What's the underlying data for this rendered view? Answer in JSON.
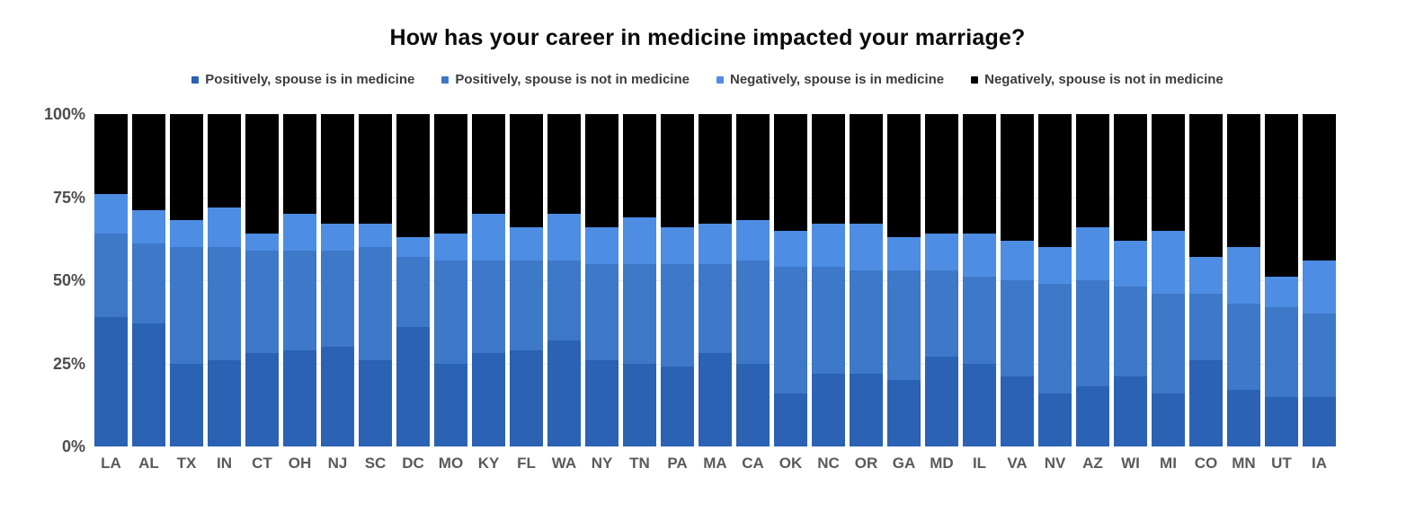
{
  "chart_data": {
    "type": "bar",
    "stacked": true,
    "percent": true,
    "title": "How has your career in medicine impacted your marriage?",
    "xlabel": "",
    "ylabel": "",
    "ylim": [
      0,
      100
    ],
    "ytick_labels": [
      "0%",
      "25%",
      "50%",
      "75%",
      "100%"
    ],
    "grid": true,
    "legend_position": "top",
    "background_color": "#ffffff",
    "gridline_color": "#e7e7e7",
    "categories": [
      "LA",
      "AL",
      "TX",
      "IN",
      "CT",
      "OH",
      "NJ",
      "SC",
      "DC",
      "MO",
      "KY",
      "FL",
      "WA",
      "NY",
      "TN",
      "PA",
      "MA",
      "CA",
      "OK",
      "NC",
      "OR",
      "GA",
      "MD",
      "IL",
      "VA",
      "NV",
      "AZ",
      "WI",
      "MI",
      "CO",
      "MN",
      "UT",
      "IA"
    ],
    "series": [
      {
        "name": "Positively, spouse is in medicine",
        "color": "#2b62b3",
        "values": [
          39,
          37,
          25,
          26,
          28,
          29,
          30,
          26,
          36,
          25,
          28,
          29,
          32,
          26,
          25,
          24,
          28,
          25,
          16,
          22,
          22,
          20,
          27,
          25,
          21,
          16,
          18,
          21,
          16,
          26,
          17,
          15,
          15
        ]
      },
      {
        "name": "Positively, spouse is not in medicine",
        "color": "#3e78c8",
        "values": [
          25,
          24,
          35,
          34,
          31,
          30,
          29,
          34,
          21,
          31,
          28,
          27,
          24,
          29,
          30,
          31,
          27,
          31,
          38,
          32,
          31,
          33,
          26,
          26,
          29,
          33,
          32,
          27,
          30,
          20,
          26,
          27,
          25
        ]
      },
      {
        "name": "Negatively, spouse is in medicine",
        "color": "#4d8de4",
        "values": [
          12,
          10,
          8,
          12,
          5,
          11,
          8,
          7,
          6,
          8,
          14,
          10,
          14,
          11,
          14,
          11,
          12,
          12,
          11,
          13,
          14,
          10,
          11,
          13,
          12,
          11,
          16,
          14,
          19,
          11,
          17,
          9,
          16
        ]
      },
      {
        "name": "Negatively, spouse is not in medicine",
        "color": "#000000",
        "values": [
          24,
          29,
          32,
          28,
          36,
          30,
          33,
          33,
          37,
          36,
          30,
          34,
          30,
          34,
          31,
          34,
          33,
          32,
          35,
          33,
          33,
          37,
          36,
          36,
          38,
          40,
          34,
          38,
          35,
          43,
          40,
          49,
          44
        ]
      }
    ]
  }
}
